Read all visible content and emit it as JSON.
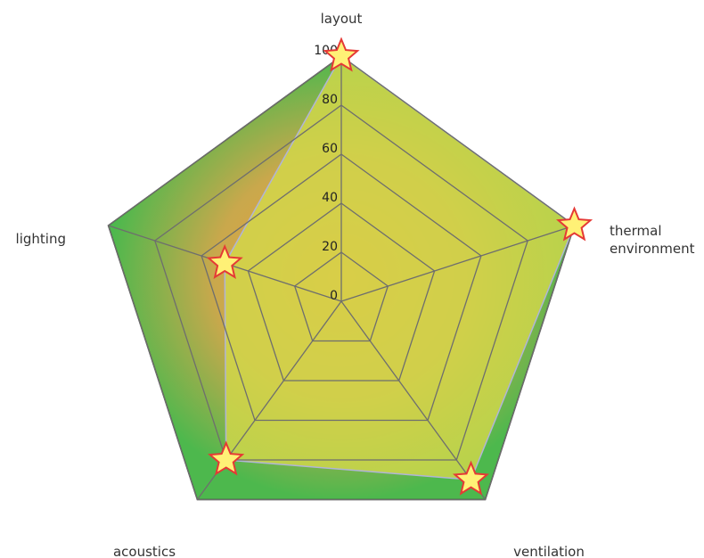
{
  "chart_data": {
    "type": "radar",
    "title": "",
    "axes": [
      "layout",
      "thermal environment",
      "ventilation",
      "acoustics",
      "lighting"
    ],
    "range": [
      0,
      100
    ],
    "ticks": [
      0,
      20,
      40,
      60,
      80,
      100
    ],
    "tick_labels": [
      "0",
      "20",
      "40",
      "60",
      "80",
      "100"
    ],
    "series": [
      {
        "values": [
          100,
          100,
          90,
          80,
          50
        ],
        "color": "#d2d84a",
        "marker": "star"
      }
    ],
    "colors": {
      "background_outer": "#4db84d",
      "background_inner": "#f4a03c",
      "grid": "#6e6e6e",
      "series_fill": "#d2d84a",
      "series_edge": "#b0b4d8",
      "marker_fill": "#fff176",
      "marker_edge": "#e53935"
    },
    "grid": true,
    "legend": "none"
  }
}
